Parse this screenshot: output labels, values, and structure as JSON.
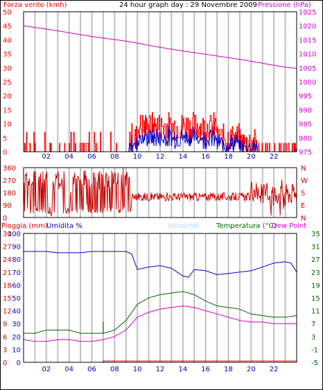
{
  "colors": {
    "red": "#ff0000",
    "dark_red": "#cc0000",
    "blue": "#0000cc",
    "magenta": "#cc00cc",
    "green": "#006600",
    "grid": "#c0c0c0",
    "dark_blue_axis": "#0000aa",
    "windchill": "#b0d8ff"
  },
  "chart_data": [
    {
      "type": "line",
      "title": "24 hour graph day : 29 Novembre 2009",
      "series": [
        {
          "name": "Forza vento (kmh)",
          "unit": "kmh",
          "color": "#ff0000",
          "ylim": [
            0,
            50
          ],
          "yticks": [
            0,
            5,
            10,
            15,
            20,
            25,
            30,
            35,
            40,
            45,
            50
          ]
        },
        {
          "name": "Pressione (hPa)",
          "unit": "hPa",
          "color": "#cc00cc",
          "ylim": [
            975,
            1025
          ],
          "yticks": [
            975,
            980,
            985,
            990,
            995,
            1000,
            1005,
            1010,
            1015,
            1020,
            1025
          ],
          "x": [
            0,
            1,
            2,
            3,
            4,
            5,
            6,
            7,
            8,
            9,
            10,
            11,
            12,
            13,
            14,
            15,
            16,
            17,
            18,
            19,
            20,
            21,
            22,
            23,
            24
          ],
          "values": [
            1020,
            1019.4,
            1018.8,
            1018.2,
            1017.5,
            1016.8,
            1016.2,
            1015.6,
            1015.1,
            1014.5,
            1013.8,
            1013.0,
            1012.3,
            1011.6,
            1011.0,
            1010.4,
            1009.8,
            1009.2,
            1008.6,
            1008.0,
            1007.3,
            1006.6,
            1005.9,
            1005.2,
            1004.8
          ]
        }
      ],
      "xlabels": [
        "02",
        "04",
        "06",
        "08",
        "10",
        "12",
        "14",
        "16",
        "18",
        "20",
        "22"
      ]
    },
    {
      "type": "line",
      "series": [
        {
          "name": "Wind direction",
          "color": "#cc0000"
        }
      ],
      "ylim": [
        0,
        360
      ],
      "yticks_left": [
        0,
        90,
        180,
        270,
        360
      ],
      "yticks_right": [
        "N",
        "E",
        "S",
        "W",
        "N"
      ]
    },
    {
      "type": "line",
      "series": [
        {
          "name": "Umidita %",
          "color": "#0000cc",
          "ylim": [
            0,
            100
          ],
          "x": [
            0,
            1,
            2,
            3,
            4,
            5,
            6,
            7,
            8,
            8.5,
            9,
            9.5,
            10,
            11,
            12,
            13,
            14,
            14.5,
            15,
            16,
            17,
            18,
            19,
            20,
            21,
            22,
            23,
            23.5,
            24
          ],
          "values": [
            86,
            86,
            86,
            85,
            85,
            85,
            86,
            86,
            86,
            86,
            86,
            84,
            72,
            74,
            75,
            73,
            67,
            66,
            72,
            71,
            68,
            69,
            70,
            71,
            74,
            77,
            78,
            77,
            70
          ]
        },
        {
          "name": "Temperatura (°C)",
          "color": "#006600",
          "ylim": [
            -5,
            35
          ],
          "x": [
            0,
            1,
            2,
            3,
            4,
            5,
            6,
            7,
            8,
            9,
            10,
            11,
            12,
            13,
            14,
            15,
            16,
            17,
            18,
            19,
            20,
            21,
            22,
            23,
            24
          ],
          "values": [
            4,
            4,
            5,
            5,
            5,
            4,
            4,
            4,
            5,
            8,
            13,
            15,
            16,
            16.5,
            17,
            16,
            14,
            12.5,
            12,
            11.5,
            10,
            9.5,
            9,
            9,
            9.5
          ]
        },
        {
          "name": "Dew Point",
          "color": "#cc00cc",
          "ylim": [
            -5,
            35
          ],
          "x": [
            0,
            1,
            2,
            3,
            4,
            5,
            6,
            7,
            8,
            9,
            10,
            11,
            12,
            13,
            14,
            15,
            16,
            17,
            18,
            19,
            20,
            21,
            22,
            23,
            24
          ],
          "values": [
            2,
            1.5,
            1.5,
            2,
            2,
            1.5,
            1.5,
            2,
            3,
            5,
            9,
            10.5,
            11.5,
            12,
            12.5,
            12,
            11,
            10,
            9,
            8,
            7.5,
            7.5,
            7,
            7,
            7
          ]
        },
        {
          "name": "Pioggia (mm)",
          "color": "#cc0000",
          "ylim": [
            0,
            30
          ],
          "x": [
            0,
            7,
            7,
            24
          ],
          "values": [
            0,
            0,
            0.3,
            0.3
          ]
        },
        {
          "name": "Windchill",
          "color": "#b0d8ff"
        }
      ],
      "yticks_left_mm": [
        0,
        3,
        6,
        9,
        12,
        15,
        18,
        21,
        24,
        27,
        30
      ],
      "yticks_left_pct": [
        0,
        10,
        20,
        30,
        40,
        50,
        60,
        70,
        80,
        90,
        100
      ],
      "yticks_right": [
        -5,
        -1,
        3,
        7,
        11,
        15,
        19,
        23,
        27,
        31,
        35
      ],
      "xlabels": [
        "02",
        "04",
        "06",
        "08",
        "10",
        "12",
        "14",
        "16",
        "18",
        "20",
        "22"
      ]
    }
  ],
  "header": {
    "left": "Forza vento (kmh)",
    "center": "24 hour graph day : 29 Novembre 2009",
    "right": "Pressione (hPa)"
  },
  "panel3_header": {
    "rain": "Pioggia (mm)",
    "humidity": "Umidita %",
    "windchill": "Windchill",
    "temperature": "Temperatura (°C)",
    "dewpoint": "Dew Point"
  }
}
